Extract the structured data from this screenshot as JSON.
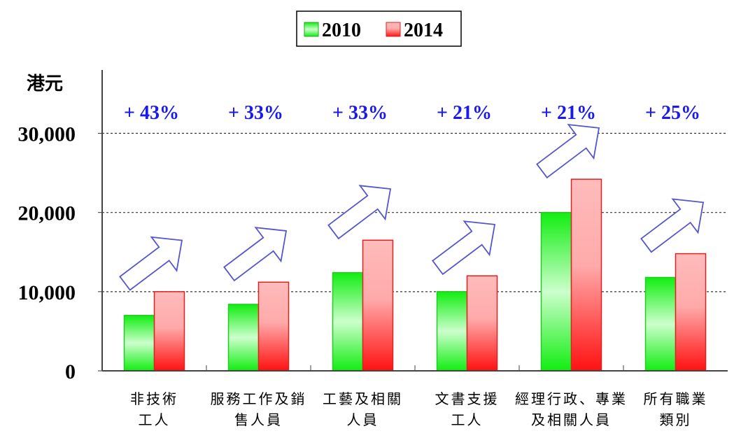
{
  "chart_data": {
    "type": "bar",
    "ylabel": "港元",
    "ylim": [
      0,
      38000
    ],
    "yticks": [
      0,
      10000,
      20000,
      30000
    ],
    "ytick_labels": [
      "0",
      "10,000",
      "20,000",
      "30,000"
    ],
    "grid": "horizontal dashed",
    "legend_placement": "top-center",
    "categories": [
      [
        "非技術",
        "工人"
      ],
      [
        "服務工作及銷",
        "售人員"
      ],
      [
        "工藝及相關",
        "人員"
      ],
      [
        "文書支援",
        "工人"
      ],
      [
        "經理行政、專業",
        "及相關人員"
      ],
      [
        "所有職業",
        "類別"
      ]
    ],
    "series": [
      {
        "name": "2010",
        "values": [
          7000,
          8400,
          12400,
          10000,
          20000,
          11800
        ],
        "color": "#22dd22"
      },
      {
        "name": "2014",
        "values": [
          10000,
          11200,
          16500,
          12000,
          24200,
          14800
        ],
        "color": "#ee2222"
      }
    ],
    "annotations": [
      "+ 43%",
      "+ 33%",
      "+ 33%",
      "+ 21%",
      "+ 21%",
      "+ 25%"
    ],
    "annotation_color": "#1a1aee",
    "arrow_color": "#5555cc"
  }
}
